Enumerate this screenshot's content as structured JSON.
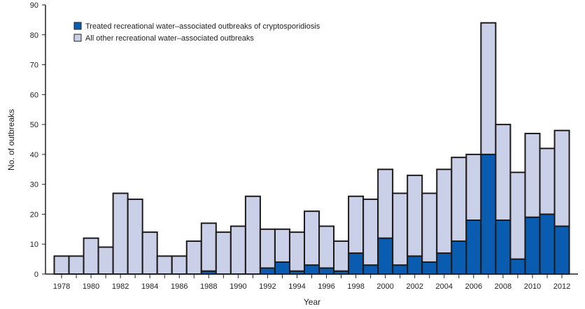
{
  "chart_data": {
    "type": "bar",
    "stacked": true,
    "title": "",
    "xlabel": "Year",
    "ylabel": "No. of outbreaks",
    "ylim": [
      0,
      90
    ],
    "yticks": [
      0,
      10,
      20,
      30,
      40,
      50,
      60,
      70,
      80,
      90
    ],
    "xtick_labels": [
      "1978",
      "1980",
      "1982",
      "1984",
      "1986",
      "1988",
      "1990",
      "1992",
      "1994",
      "1996",
      "1998",
      "2000",
      "2002",
      "2004",
      "2006",
      "2008",
      "2010",
      "2012"
    ],
    "categories": [
      1978,
      1979,
      1980,
      1981,
      1982,
      1983,
      1984,
      1985,
      1986,
      1987,
      1988,
      1989,
      1990,
      1991,
      1992,
      1993,
      1994,
      1995,
      1996,
      1997,
      1998,
      1999,
      2000,
      2001,
      2002,
      2003,
      2004,
      2005,
      2006,
      2007,
      2008,
      2009,
      2010,
      2011,
      2012
    ],
    "series": [
      {
        "name": "Treated recreational water–associated outbreaks of cryptosporidiosis",
        "color": "#0a5cb0",
        "values": [
          0,
          0,
          0,
          0,
          0,
          0,
          0,
          0,
          0,
          0,
          1,
          0,
          0,
          0,
          2,
          4,
          1,
          3,
          2,
          1,
          7,
          3,
          12,
          3,
          6,
          4,
          7,
          11,
          18,
          40,
          18,
          5,
          19,
          20,
          16
        ]
      },
      {
        "name": "All other recreational water–associated outbreaks",
        "color": "#c9d0e8",
        "values": [
          6,
          6,
          12,
          9,
          27,
          25,
          14,
          6,
          6,
          11,
          16,
          14,
          16,
          26,
          13,
          11,
          13,
          18,
          14,
          10,
          19,
          22,
          23,
          24,
          27,
          23,
          28,
          28,
          22,
          44,
          32,
          29,
          28,
          22,
          32
        ]
      }
    ],
    "legend_placement": "top-left",
    "grid": false
  }
}
